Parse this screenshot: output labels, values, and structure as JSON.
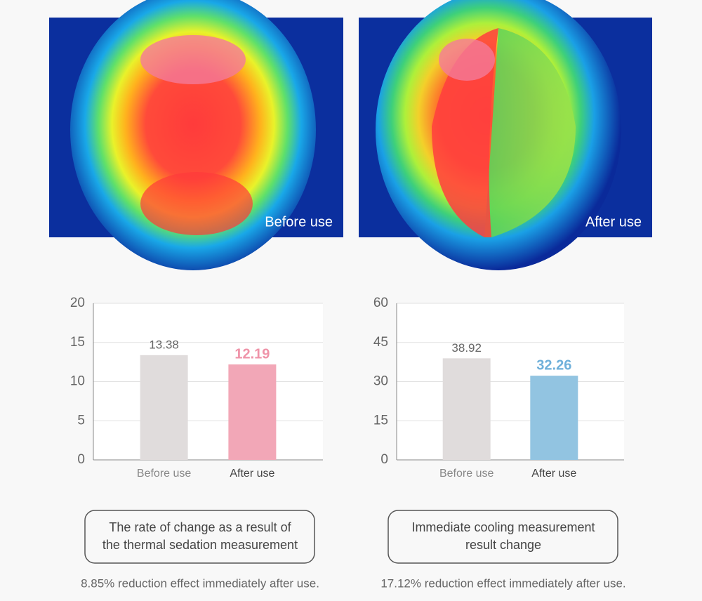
{
  "images": [
    {
      "label": "Before use"
    },
    {
      "label": "After use"
    }
  ],
  "chart_data": [
    {
      "type": "bar",
      "categories": [
        "Before use",
        "After use"
      ],
      "values": [
        13.38,
        12.19
      ],
      "colors": [
        "#e0dcdc",
        "#f2a7b7"
      ],
      "value_label_colors": [
        "#666666",
        "#ef93a8"
      ],
      "ylim": [
        0,
        20
      ],
      "yticks": [
        0,
        5,
        10,
        15,
        20
      ],
      "grid": true
    },
    {
      "type": "bar",
      "categories": [
        "Before use",
        "After use"
      ],
      "values": [
        38.92,
        32.26
      ],
      "colors": [
        "#e0dcdc",
        "#92c4e1"
      ],
      "value_label_colors": [
        "#666666",
        "#6fb0da"
      ],
      "ylim": [
        0,
        60
      ],
      "yticks": [
        0,
        15,
        30,
        45,
        60
      ],
      "grid": true
    }
  ],
  "captions": [
    {
      "box": [
        "The rate of change as a result of",
        "the thermal sedation measurement"
      ],
      "note": "8.85% reduction effect immediately after use."
    },
    {
      "box": [
        "Immediate cooling measurement",
        "result change"
      ],
      "note": "17.12% reduction effect immediately after use."
    }
  ]
}
